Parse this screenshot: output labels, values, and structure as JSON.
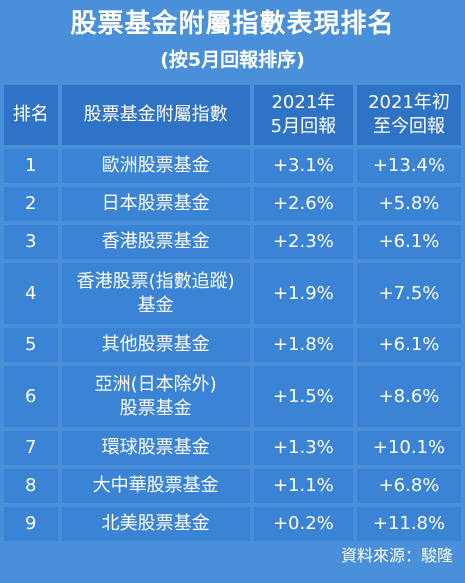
{
  "title": "股票基金附屬指數表現排名",
  "subtitle": "(按5月回報排序)",
  "table": {
    "headers": {
      "rank": "排名",
      "name": "股票基金附屬指數",
      "may_line1": "2021年",
      "may_line2": "5月回報",
      "ytd_line1": "2021年初",
      "ytd_line2": "至今回報"
    },
    "rows": [
      {
        "rank": "1",
        "name_line1": "歐洲股票基金",
        "name_line2": "",
        "may": "+3.1%",
        "ytd": "+13.4%"
      },
      {
        "rank": "2",
        "name_line1": "日本股票基金",
        "name_line2": "",
        "may": "+2.6%",
        "ytd": "+5.8%"
      },
      {
        "rank": "3",
        "name_line1": "香港股票基金",
        "name_line2": "",
        "may": "+2.3%",
        "ytd": "+6.1%"
      },
      {
        "rank": "4",
        "name_line1": "香港股票(指數追蹤)",
        "name_line2": "基金",
        "may": "+1.9%",
        "ytd": "+7.5%"
      },
      {
        "rank": "5",
        "name_line1": "其他股票基金",
        "name_line2": "",
        "may": "+1.8%",
        "ytd": "+6.1%"
      },
      {
        "rank": "6",
        "name_line1": "亞洲(日本除外)",
        "name_line2": "股票基金",
        "may": "+1.5%",
        "ytd": "+8.6%"
      },
      {
        "rank": "7",
        "name_line1": "環球股票基金",
        "name_line2": "",
        "may": "+1.3%",
        "ytd": "+10.1%"
      },
      {
        "rank": "8",
        "name_line1": "大中華股票基金",
        "name_line2": "",
        "may": "+1.1%",
        "ytd": "+6.8%"
      },
      {
        "rank": "9",
        "name_line1": "北美股票基金",
        "name_line2": "",
        "may": "+0.2%",
        "ytd": "+11.8%"
      }
    ]
  },
  "source": "資料來源：駿隆"
}
